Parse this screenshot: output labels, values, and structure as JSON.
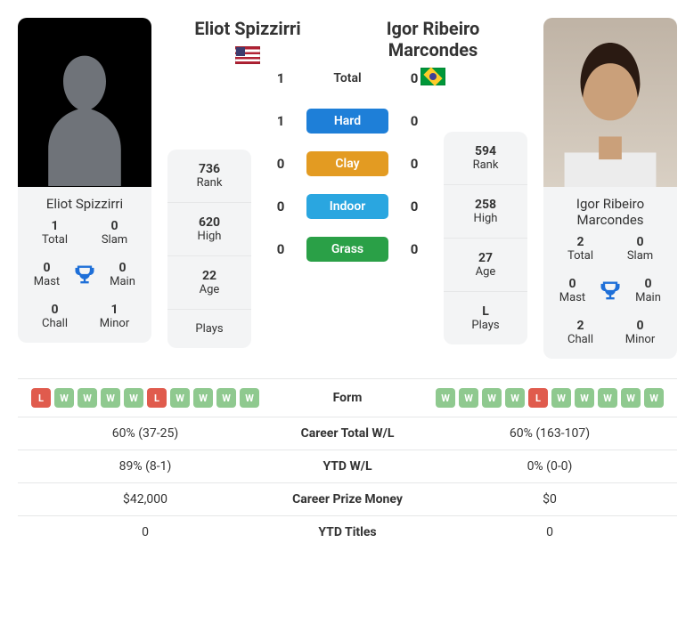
{
  "player1": {
    "name": "Eliot Spizzirri",
    "flag": "us",
    "titles": {
      "total": 1,
      "slam": 0,
      "mast": 0,
      "main": 0,
      "chall": 0,
      "minor": 1
    },
    "rank": 736,
    "high": 620,
    "age": 22,
    "plays": ""
  },
  "player2": {
    "name": "Igor Ribeiro Marcondes",
    "flag": "br",
    "titles": {
      "total": 2,
      "slam": 0,
      "mast": 0,
      "main": 0,
      "chall": 2,
      "minor": 0
    },
    "rank": 594,
    "high": 258,
    "age": 27,
    "plays": "L"
  },
  "h2h": {
    "total": {
      "p1": 1,
      "p2": 0
    },
    "hard": {
      "p1": 1,
      "p2": 0
    },
    "clay": {
      "p1": 0,
      "p2": 0
    },
    "indoor": {
      "p1": 0,
      "p2": 0
    },
    "grass": {
      "p1": 0,
      "p2": 0
    }
  },
  "labels": {
    "total": "Total",
    "slam": "Slam",
    "mast": "Mast",
    "main": "Main",
    "chall": "Chall",
    "minor": "Minor",
    "rank": "Rank",
    "high": "High",
    "age": "Age",
    "plays": "Plays",
    "h2h_total": "Total",
    "hard": "Hard",
    "clay": "Clay",
    "indoor": "Indoor",
    "grass": "Grass",
    "form": "Form",
    "career_wl": "Career Total W/L",
    "ytd_wl": "YTD W/L",
    "career_prize": "Career Prize Money",
    "ytd_titles": "YTD Titles"
  },
  "form": {
    "p1": [
      "L",
      "W",
      "W",
      "W",
      "W",
      "L",
      "W",
      "W",
      "W",
      "W"
    ],
    "p2": [
      "W",
      "W",
      "W",
      "W",
      "L",
      "W",
      "W",
      "W",
      "W",
      "W"
    ]
  },
  "career": {
    "p1_wl": "60% (37-25)",
    "p2_wl": "60% (163-107)",
    "p1_ytd_wl": "89% (8-1)",
    "p2_ytd_wl": "0% (0-0)",
    "p1_prize": "$42,000",
    "p2_prize": "$0",
    "p1_ytd_titles": "0",
    "p2_ytd_titles": "0"
  },
  "colors": {
    "hard": "#1e7fd8",
    "clay": "#e39b22",
    "indoor": "#2aa6e0",
    "grass": "#2aa047",
    "win_chip": "#8fc98f",
    "loss_chip": "#e05b4d",
    "trophy": "#1e6fd8",
    "card_bg": "#f3f4f5",
    "divider": "#e6e7e8"
  }
}
